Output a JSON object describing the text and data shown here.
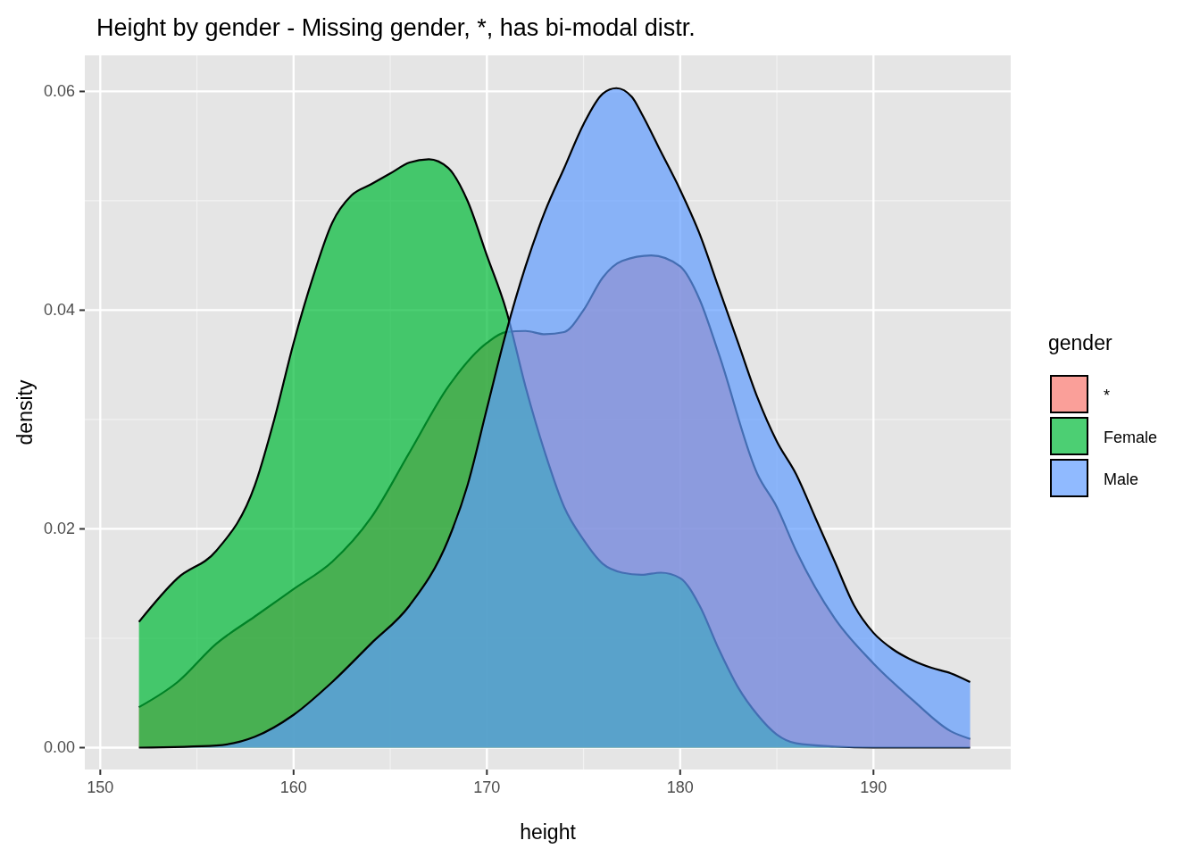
{
  "chart_data": {
    "type": "area",
    "title": "Height by gender - Missing gender, *, has bi-modal distr.",
    "xlabel": "height",
    "ylabel": "density",
    "legend_title": "gender",
    "legend": "right",
    "grid": true,
    "xlim": [
      149.2,
      197.1
    ],
    "ylim": [
      -0.002,
      0.0633
    ],
    "xticks": [
      150,
      160,
      170,
      180,
      190
    ],
    "yticks": [
      {
        "value": 0,
        "label": "0.00"
      },
      {
        "value": 0.02,
        "label": "0.02"
      },
      {
        "value": 0.04,
        "label": "0.04"
      },
      {
        "value": 0.06,
        "label": "0.06"
      }
    ],
    "series": [
      {
        "name": "*",
        "color": "#f8766d",
        "x": [
          152,
          154,
          156,
          158,
          160,
          162,
          164,
          166,
          168,
          170,
          171,
          172,
          173,
          174,
          175,
          176,
          177,
          178.5,
          180,
          181,
          182,
          184,
          185,
          186,
          188,
          190,
          192,
          194,
          195
        ],
        "values": [
          0.0037,
          0.006,
          0.0095,
          0.012,
          0.0145,
          0.017,
          0.021,
          0.027,
          0.033,
          0.037,
          0.038,
          0.0381,
          0.0378,
          0.038,
          0.04,
          0.043,
          0.0445,
          0.045,
          0.044,
          0.041,
          0.036,
          0.025,
          0.022,
          0.018,
          0.0118,
          0.0077,
          0.0044,
          0.0015,
          0.0008
        ]
      },
      {
        "name": "Female",
        "color": "#00ba38",
        "x": [
          152,
          154,
          156,
          158,
          159,
          160,
          161,
          162,
          163,
          164,
          165,
          166,
          167,
          168,
          169,
          170,
          171,
          172,
          173,
          174,
          175,
          176,
          177,
          178,
          179,
          180,
          181,
          182,
          183,
          184,
          185,
          186,
          188,
          190,
          195
        ],
        "values": [
          0.0115,
          0.0155,
          0.018,
          0.024,
          0.03,
          0.037,
          0.043,
          0.048,
          0.0505,
          0.0515,
          0.0525,
          0.0535,
          0.0538,
          0.053,
          0.05,
          0.045,
          0.04,
          0.033,
          0.027,
          0.022,
          0.019,
          0.0168,
          0.016,
          0.0158,
          0.016,
          0.0155,
          0.013,
          0.009,
          0.0055,
          0.003,
          0.0012,
          0.0004,
          0.0001,
          0,
          0
        ]
      },
      {
        "name": "Male",
        "color": "#619cff",
        "x": [
          152,
          156,
          158,
          160,
          162,
          164,
          166,
          168,
          169,
          170,
          171,
          172,
          173,
          174,
          175,
          176,
          176.7,
          177.5,
          178,
          179,
          180,
          181,
          182,
          183,
          184,
          185,
          186,
          187,
          188,
          189,
          190,
          191,
          192,
          193,
          194,
          195
        ],
        "values": [
          0,
          0.0002,
          0.001,
          0.003,
          0.006,
          0.0095,
          0.013,
          0.019,
          0.024,
          0.031,
          0.038,
          0.044,
          0.049,
          0.053,
          0.057,
          0.0598,
          0.0603,
          0.0595,
          0.058,
          0.0545,
          0.051,
          0.047,
          0.042,
          0.037,
          0.032,
          0.028,
          0.025,
          0.021,
          0.017,
          0.013,
          0.0105,
          0.009,
          0.008,
          0.0073,
          0.0068,
          0.006
        ]
      }
    ]
  }
}
